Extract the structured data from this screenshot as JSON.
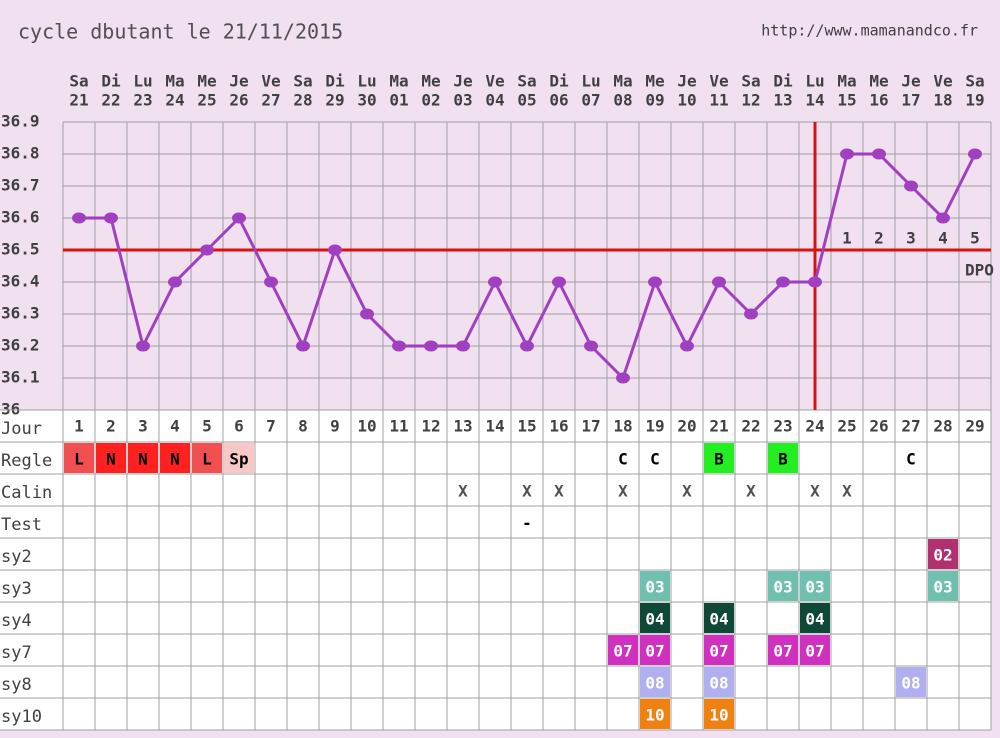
{
  "header": {
    "title": "cycle dbutant le 21/11/2015",
    "url": "http://www.mamanandco.fr"
  },
  "chart_data": {
    "type": "line",
    "weekdays": [
      "Sa",
      "Di",
      "Lu",
      "Ma",
      "Me",
      "Je",
      "Ve",
      "Sa",
      "Di",
      "Lu",
      "Ma",
      "Me",
      "Je",
      "Ve",
      "Sa",
      "Di",
      "Lu",
      "Ma",
      "Me",
      "Je",
      "Ve",
      "Sa",
      "Di",
      "Lu",
      "Ma",
      "Me",
      "Je",
      "Ve",
      "Sa"
    ],
    "dates": [
      "21",
      "22",
      "23",
      "24",
      "25",
      "26",
      "27",
      "28",
      "29",
      "30",
      "01",
      "02",
      "03",
      "04",
      "05",
      "06",
      "07",
      "08",
      "09",
      "10",
      "11",
      "12",
      "13",
      "14",
      "15",
      "16",
      "17",
      "18",
      "19"
    ],
    "day_label": "Jour",
    "categories": [
      1,
      2,
      3,
      4,
      5,
      6,
      7,
      8,
      9,
      10,
      11,
      12,
      13,
      14,
      15,
      16,
      17,
      18,
      19,
      20,
      21,
      22,
      23,
      24,
      25,
      26,
      27,
      28,
      29
    ],
    "values": [
      36.6,
      36.6,
      36.2,
      36.4,
      36.5,
      36.6,
      36.4,
      36.2,
      36.5,
      36.3,
      36.2,
      36.2,
      36.2,
      36.4,
      36.2,
      36.4,
      36.2,
      36.1,
      36.4,
      36.2,
      36.4,
      36.3,
      36.4,
      36.4,
      36.8,
      36.8,
      36.7,
      36.6,
      36.8
    ],
    "color": "#a040c0",
    "ylim": [
      36,
      36.9
    ],
    "yticks": [
      36.9,
      36.8,
      36.7,
      36.6,
      36.5,
      36.4,
      36.3,
      36.2,
      36.1,
      36
    ],
    "coverline": 36.5,
    "ovulation_day": 24,
    "line_color": "#dd1010",
    "dpo_labels": [
      1,
      2,
      3,
      4,
      5
    ],
    "dpo_unit": "DPO"
  },
  "table": {
    "rows": [
      {
        "label": "Regle",
        "cells": [
          {
            "day": 1,
            "text": "L",
            "color": "#f05050"
          },
          {
            "day": 2,
            "text": "N",
            "color": "#ff2020"
          },
          {
            "day": 3,
            "text": "N",
            "color": "#ff2020"
          },
          {
            "day": 4,
            "text": "N",
            "color": "#ff2020"
          },
          {
            "day": 5,
            "text": "L",
            "color": "#f05050"
          },
          {
            "day": 6,
            "text": "Sp",
            "color": "#f8c8c8"
          },
          {
            "day": 18,
            "text": "C"
          },
          {
            "day": 19,
            "text": "C"
          },
          {
            "day": 21,
            "text": "B",
            "color": "#22ee22"
          },
          {
            "day": 23,
            "text": "B",
            "color": "#22ee22"
          },
          {
            "day": 27,
            "text": "C"
          }
        ]
      },
      {
        "label": "Calin",
        "cells": [
          {
            "day": 13,
            "text": "X"
          },
          {
            "day": 15,
            "text": "X"
          },
          {
            "day": 16,
            "text": "X"
          },
          {
            "day": 18,
            "text": "X"
          },
          {
            "day": 20,
            "text": "X"
          },
          {
            "day": 22,
            "text": "X"
          },
          {
            "day": 24,
            "text": "X"
          },
          {
            "day": 25,
            "text": "X"
          }
        ]
      },
      {
        "label": "Test",
        "cells": [
          {
            "day": 15,
            "text": "-"
          }
        ]
      },
      {
        "label": "sy2",
        "cells": [
          {
            "day": 28,
            "text": "02",
            "color": "#b03070"
          }
        ]
      },
      {
        "label": "sy3",
        "cells": [
          {
            "day": 19,
            "text": "03",
            "color": "#70c0b0"
          },
          {
            "day": 23,
            "text": "03",
            "color": "#70c0b0"
          },
          {
            "day": 24,
            "text": "03",
            "color": "#70c0b0"
          },
          {
            "day": 28,
            "text": "03",
            "color": "#70c0b0"
          }
        ]
      },
      {
        "label": "sy4",
        "cells": [
          {
            "day": 19,
            "text": "04",
            "color": "#104838"
          },
          {
            "day": 21,
            "text": "04",
            "color": "#104838"
          },
          {
            "day": 24,
            "text": "04",
            "color": "#104838"
          }
        ]
      },
      {
        "label": "sy7",
        "cells": [
          {
            "day": 18,
            "text": "07",
            "color": "#d030c0"
          },
          {
            "day": 19,
            "text": "07",
            "color": "#d030c0"
          },
          {
            "day": 21,
            "text": "07",
            "color": "#d030c0"
          },
          {
            "day": 23,
            "text": "07",
            "color": "#d030c0"
          },
          {
            "day": 24,
            "text": "07",
            "color": "#d030c0"
          }
        ]
      },
      {
        "label": "sy8",
        "cells": [
          {
            "day": 19,
            "text": "08",
            "color": "#b0b0f0"
          },
          {
            "day": 21,
            "text": "08",
            "color": "#b0b0f0"
          },
          {
            "day": 27,
            "text": "08",
            "color": "#b0b0f0"
          }
        ]
      },
      {
        "label": "sy10",
        "cells": [
          {
            "day": 19,
            "text": "10",
            "color": "#f08010"
          },
          {
            "day": 21,
            "text": "10",
            "color": "#f08010"
          }
        ]
      }
    ]
  }
}
